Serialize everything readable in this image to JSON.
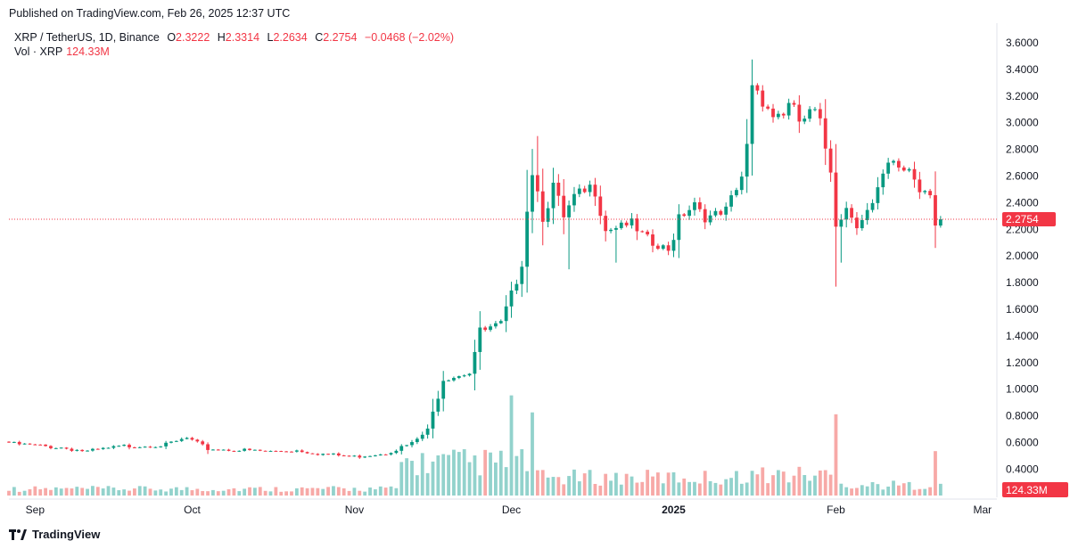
{
  "published": "Published on TradingView.com, Feb 26, 2025 12:37 UTC",
  "legend": {
    "symbol": "XRP / TetherUS, 1D, Binance",
    "open_label": "O",
    "open": "2.3222",
    "high_label": "H",
    "high": "2.3314",
    "low_label": "L",
    "low": "2.2634",
    "close_label": "C",
    "close": "2.2754",
    "change": "−0.0468 (−2.02%)",
    "vol_label": "Vol · XRP",
    "vol_value": "124.33M"
  },
  "brand": "TradingView",
  "colors": {
    "up": "#089981",
    "down": "#f23645",
    "up_vol": "#92d2cc",
    "down_vol": "#f7a9a7",
    "price_line": "#f23645"
  },
  "chart_data": {
    "type": "candlestick",
    "y_ticks": [
      "3.6000",
      "3.4000",
      "3.2000",
      "3.0000",
      "2.8000",
      "2.6000",
      "2.4000",
      "2.2000",
      "2.0000",
      "1.8000",
      "1.6000",
      "1.4000",
      "1.2000",
      "1.0000",
      "0.8000",
      "0.6000",
      "0.4000"
    ],
    "ylim": [
      0.2,
      3.7
    ],
    "x_ticks": [
      {
        "label": "Sep",
        "day": 5,
        "bold": false
      },
      {
        "label": "Oct",
        "day": 35,
        "bold": false
      },
      {
        "label": "Nov",
        "day": 66,
        "bold": false
      },
      {
        "label": "Dec",
        "day": 96,
        "bold": false
      },
      {
        "label": "2025",
        "day": 127,
        "bold": true
      },
      {
        "label": "Feb",
        "day": 158,
        "bold": false
      },
      {
        "label": "Mar",
        "day": 186,
        "bold": false
      }
    ],
    "last_price": 2.2754,
    "last_price_label": "2.2754",
    "last_volume_label": "124.33M",
    "vol_max": 1000,
    "keypoints": [
      [
        0,
        0.6
      ],
      [
        10,
        0.57
      ],
      [
        15,
        0.54
      ],
      [
        22,
        0.58
      ],
      [
        30,
        0.59
      ],
      [
        34,
        0.64
      ],
      [
        38,
        0.56
      ],
      [
        50,
        0.54
      ],
      [
        55,
        0.55
      ],
      [
        60,
        0.52
      ],
      [
        66,
        0.5
      ],
      [
        72,
        0.53
      ],
      [
        77,
        0.6
      ],
      [
        80,
        0.7
      ],
      [
        83,
        1.1
      ],
      [
        85,
        1.12
      ],
      [
        88,
        1.15
      ],
      [
        90,
        1.45
      ],
      [
        92,
        1.47
      ],
      [
        94,
        1.5
      ],
      [
        96,
        1.72
      ],
      [
        98,
        2.0
      ],
      [
        99,
        2.4
      ],
      [
        100,
        2.7
      ],
      [
        102,
        2.35
      ],
      [
        104,
        2.55
      ],
      [
        106,
        2.3
      ],
      [
        108,
        2.45
      ],
      [
        110,
        2.5
      ],
      [
        112,
        2.55
      ],
      [
        114,
        2.25
      ],
      [
        118,
        2.3
      ],
      [
        120,
        2.2
      ],
      [
        123,
        2.1
      ],
      [
        126,
        2.05
      ],
      [
        128,
        2.35
      ],
      [
        131,
        2.45
      ],
      [
        134,
        2.3
      ],
      [
        137,
        2.35
      ],
      [
        140,
        2.6
      ],
      [
        141,
        2.9
      ],
      [
        142,
        3.35
      ],
      [
        144,
        3.25
      ],
      [
        146,
        3.1
      ],
      [
        149,
        3.15
      ],
      [
        151,
        3.05
      ],
      [
        154,
        3.1
      ],
      [
        155,
        3.0
      ],
      [
        157,
        2.7
      ],
      [
        158,
        2.3
      ],
      [
        160,
        2.4
      ],
      [
        162,
        2.3
      ],
      [
        165,
        2.4
      ],
      [
        168,
        2.7
      ],
      [
        172,
        2.7
      ],
      [
        174,
        2.55
      ],
      [
        176,
        2.55
      ],
      [
        177,
        2.3
      ],
      [
        178,
        2.275
      ]
    ],
    "spikes": {
      "101": 2.9,
      "107": 1.9,
      "116": 1.95,
      "158": 1.77,
      "159": 1.95,
      "174": 2.45,
      "177": 2.06
    },
    "vol_spikes": {
      "96": 1060,
      "100": 880,
      "158": 860,
      "177": 470,
      "178": 124
    }
  }
}
